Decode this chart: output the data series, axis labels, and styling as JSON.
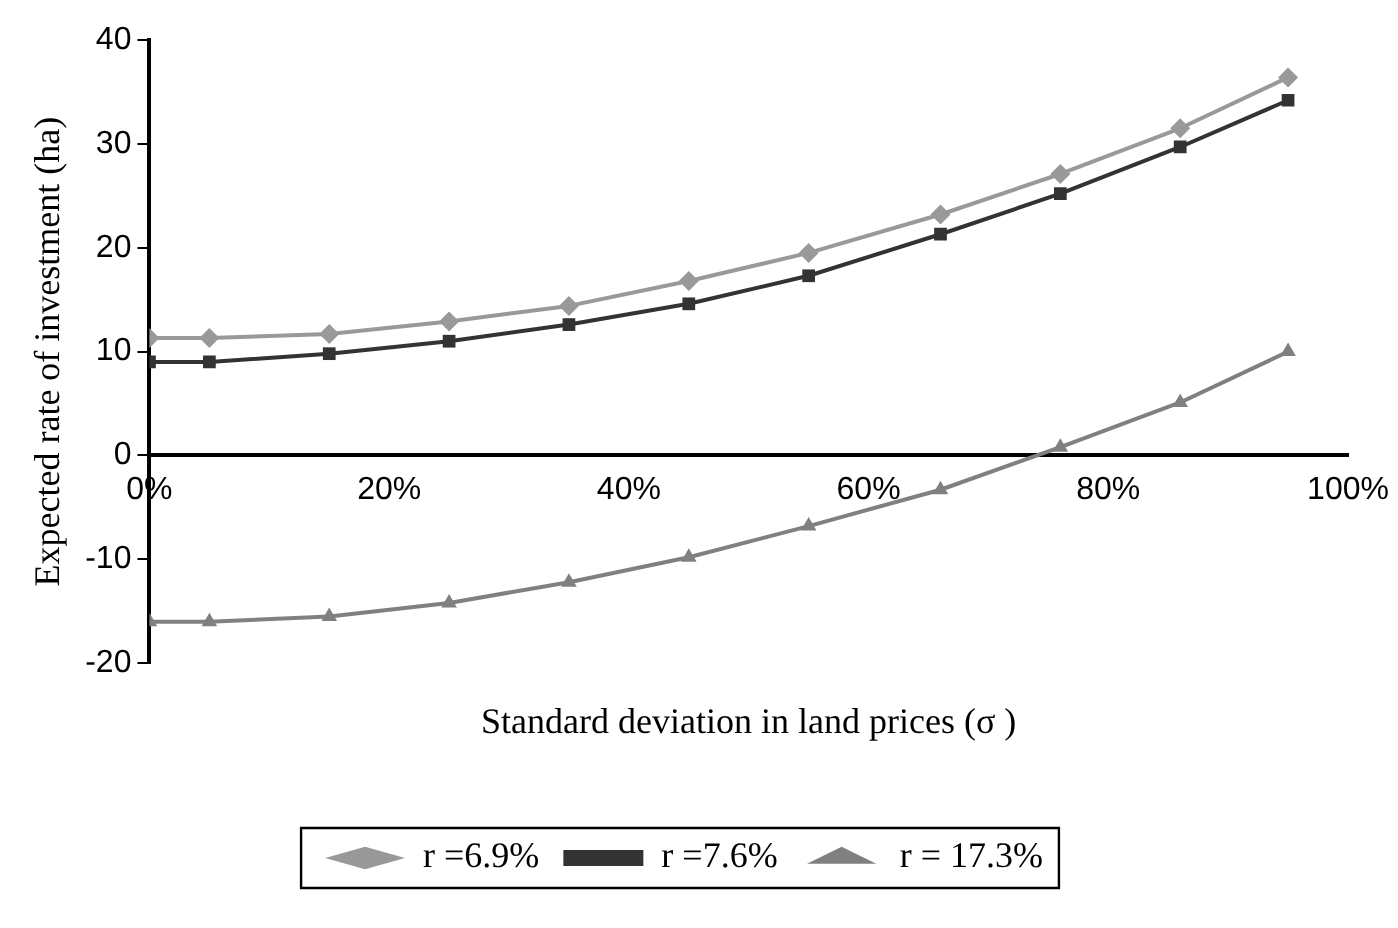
{
  "chart_data": {
    "type": "line",
    "xlabel": "Standard deviation in land prices (σ )",
    "ylabel": "Expected rate of investment (ha)",
    "x": [
      0,
      5,
      15,
      25,
      35,
      45,
      55,
      66,
      76,
      86,
      95
    ],
    "series": [
      {
        "name": "r =6.9%",
        "color": "#999999",
        "marker": "diamond",
        "values": [
          11.3,
          11.3,
          11.7,
          12.9,
          14.4,
          16.8,
          19.5,
          23.2,
          27.1,
          31.5,
          36.4
        ]
      },
      {
        "name": "r =7.6%",
        "color": "#333333",
        "marker": "square",
        "values": [
          9.0,
          9.0,
          9.8,
          11.0,
          12.6,
          14.6,
          17.3,
          21.3,
          25.2,
          29.7,
          34.2
        ]
      },
      {
        "name": "r = 17.3%",
        "color": "#808080",
        "marker": "triangle",
        "values": [
          -16,
          -16,
          -15.5,
          -14.2,
          -12.2,
          -9.8,
          -6.8,
          -3.3,
          0.8,
          5.1,
          10
        ]
      }
    ],
    "xlim": [
      0,
      100
    ],
    "xticks": [
      {
        "value": 0,
        "label": "0%"
      },
      {
        "value": 20,
        "label": "20%"
      },
      {
        "value": 40,
        "label": "40%"
      },
      {
        "value": 60,
        "label": "60%"
      },
      {
        "value": 80,
        "label": "80%"
      },
      {
        "value": 100,
        "label": "100%"
      }
    ],
    "ylim": [
      -20,
      40
    ],
    "yticks": [
      -20,
      -10,
      0,
      10,
      20,
      30,
      40
    ],
    "grid": false,
    "legend": "bottom",
    "line_style": "solid"
  }
}
